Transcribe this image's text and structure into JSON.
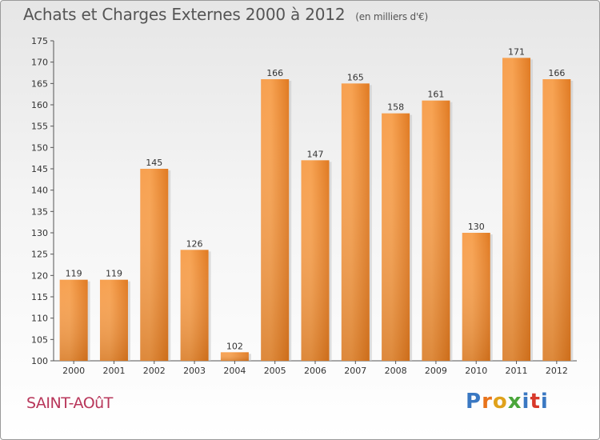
{
  "title": "Achats et Charges Externes 2000 à 2012",
  "unit": "(en milliers d'€)",
  "commune": "SAINT-AOûT",
  "logo": {
    "letters": [
      "P",
      "r",
      "o",
      "x",
      "i",
      "t",
      "i"
    ],
    "colors": [
      "#3a78c2",
      "#e8731b",
      "#e0a21b",
      "#4aa63a",
      "#3a78c2",
      "#d8392b",
      "#3a78c2"
    ]
  },
  "colors": {
    "bar": "#f08a2e",
    "bar_light": "#f8a85a",
    "bar_dark": "#d86e14",
    "commune": "#b8365a"
  },
  "chart_data": {
    "type": "bar",
    "categories": [
      "2000",
      "2001",
      "2002",
      "2003",
      "2004",
      "2005",
      "2006",
      "2007",
      "2008",
      "2009",
      "2010",
      "2011",
      "2012"
    ],
    "values": [
      119,
      119,
      145,
      126,
      102,
      166,
      147,
      165,
      158,
      161,
      130,
      171,
      166
    ],
    "title": "Achats et Charges Externes 2000 à 2012",
    "subtitle": "(en milliers d'€)",
    "ylim": [
      100,
      175
    ],
    "yticks": [
      100,
      105,
      110,
      115,
      120,
      125,
      130,
      135,
      140,
      145,
      150,
      155,
      160,
      165,
      170,
      175
    ],
    "grid": false,
    "legend": "none"
  }
}
